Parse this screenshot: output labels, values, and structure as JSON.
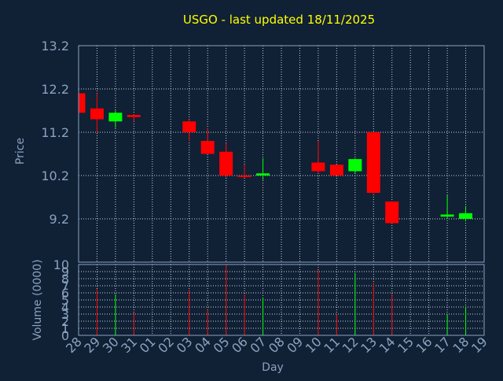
{
  "colors": {
    "background": "#102035",
    "axis": "#8aa2bf",
    "grid": "#c8d3df",
    "title": "#ffff00",
    "label": "#8aa2bf",
    "up": "#00ff00",
    "down": "#ff0000"
  },
  "chart_data": {
    "type": "candlestick",
    "title": "USGO - last updated 18/11/2025",
    "xlabel": "Day",
    "ylabel": "Price",
    "volume_label": "Volume (0000)",
    "ylim": [
      8.2,
      13.2
    ],
    "yticks": [
      "13.2",
      "12.2",
      "11.2",
      "10.2",
      "9.2"
    ],
    "volume_ylim": [
      0,
      10
    ],
    "volume_ticks": [
      "0",
      "1",
      "2",
      "3",
      "4",
      "5",
      "6",
      "7",
      "8",
      "9",
      "10"
    ],
    "x_labels": [
      "28",
      "29",
      "30",
      "31",
      "01",
      "02",
      "03",
      "04",
      "05",
      "06",
      "07",
      "08",
      "09",
      "10",
      "11",
      "12",
      "13",
      "14",
      "15",
      "16",
      "17",
      "18",
      "19"
    ],
    "grid": true,
    "candles": [
      {
        "day": "28",
        "open": 12.1,
        "high": 12.1,
        "low": 11.6,
        "close": 11.65,
        "volume": 0
      },
      {
        "day": "29",
        "open": 11.75,
        "high": 12.1,
        "low": 11.2,
        "close": 11.5,
        "volume": 6.5
      },
      {
        "day": "30",
        "open": 11.45,
        "high": 11.7,
        "low": 11.3,
        "close": 11.65,
        "volume": 5.8
      },
      {
        "day": "31",
        "open": 11.6,
        "high": 11.62,
        "low": 11.45,
        "close": 11.55,
        "volume": 3.2
      },
      {
        "day": "03",
        "open": 11.45,
        "high": 11.5,
        "low": 11.0,
        "close": 11.2,
        "volume": 6.4
      },
      {
        "day": "04",
        "open": 11.0,
        "high": 11.3,
        "low": 10.7,
        "close": 10.7,
        "volume": 3.6
      },
      {
        "day": "05",
        "open": 10.75,
        "high": 10.95,
        "low": 10.15,
        "close": 10.2,
        "volume": 10
      },
      {
        "day": "06",
        "open": 10.2,
        "high": 10.45,
        "low": 10.15,
        "close": 10.18,
        "volume": 5.8
      },
      {
        "day": "07",
        "open": 10.2,
        "high": 10.6,
        "low": 10.1,
        "close": 10.25,
        "volume": 5.3
      },
      {
        "day": "10",
        "open": 10.5,
        "high": 11.0,
        "low": 10.25,
        "close": 10.3,
        "volume": 9.2
      },
      {
        "day": "11",
        "open": 10.45,
        "high": 10.45,
        "low": 10.2,
        "close": 10.2,
        "volume": 3.0
      },
      {
        "day": "12",
        "open": 10.3,
        "high": 10.6,
        "low": 10.25,
        "close": 10.58,
        "volume": 8.8
      },
      {
        "day": "13",
        "open": 11.2,
        "high": 11.2,
        "low": 9.75,
        "close": 9.8,
        "volume": 7.4
      },
      {
        "day": "14",
        "open": 9.6,
        "high": 9.6,
        "low": 9.1,
        "close": 9.1,
        "volume": 5.8
      },
      {
        "day": "17",
        "open": 9.25,
        "high": 9.75,
        "low": 9.2,
        "close": 9.3,
        "volume": 3.0
      },
      {
        "day": "18",
        "open": 9.2,
        "high": 9.5,
        "low": 9.15,
        "close": 9.33,
        "volume": 4.0
      }
    ]
  }
}
